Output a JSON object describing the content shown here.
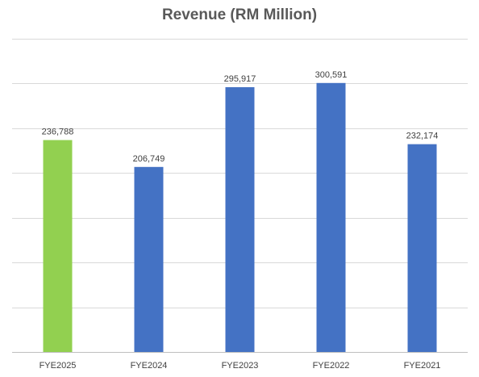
{
  "chart_data": {
    "type": "bar",
    "title": "Revenue (RM Million)",
    "categories": [
      "FYE2025",
      "FYE2024",
      "FYE2023",
      "FYE2022",
      "FYE2021"
    ],
    "values": [
      236788,
      206749,
      295917,
      300591,
      232174
    ],
    "value_labels": [
      "236,788",
      "206,749",
      "295,917",
      "300,591",
      "232,174"
    ],
    "bar_colors": [
      "#92D050",
      "#4472C4",
      "#4472C4",
      "#4472C4",
      "#4472C4"
    ],
    "xlabel": "",
    "ylabel": "",
    "ylim": [
      0,
      350000
    ],
    "grid": true,
    "y_tick_labels_shown": false,
    "legend": false
  },
  "colors": {
    "gridline": "#d9d9d9",
    "axis": "#bfbfbf",
    "label_text": "#404040",
    "title_text": "#595959"
  }
}
